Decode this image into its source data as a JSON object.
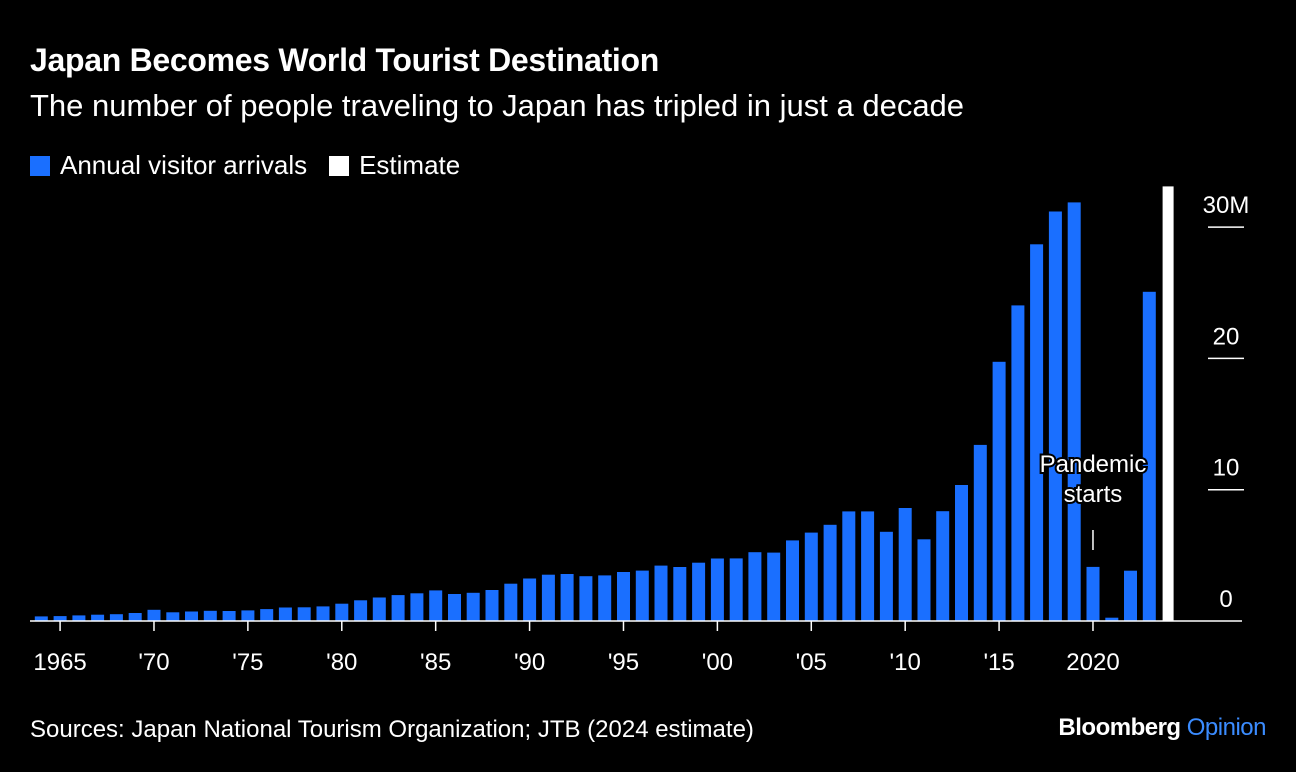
{
  "title": "Japan Becomes World Tourist Destination",
  "subtitle": "The number of people traveling to Japan has tripled in just a decade",
  "legend": [
    {
      "label": "Annual visitor arrivals",
      "color": "#1a6fff"
    },
    {
      "label": "Estimate",
      "color": "#ffffff"
    }
  ],
  "source": "Sources: Japan National Tourism Organization; JTB (2024 estimate)",
  "brand": {
    "main": "Bloomberg",
    "accent": "Opinion"
  },
  "chart_data": {
    "type": "bar",
    "x": [
      1964,
      1965,
      1966,
      1967,
      1968,
      1969,
      1970,
      1971,
      1972,
      1973,
      1974,
      1975,
      1976,
      1977,
      1978,
      1979,
      1980,
      1981,
      1982,
      1983,
      1984,
      1985,
      1986,
      1987,
      1988,
      1989,
      1990,
      1991,
      1992,
      1993,
      1994,
      1995,
      1996,
      1997,
      1998,
      1999,
      2000,
      2001,
      2002,
      2003,
      2004,
      2005,
      2006,
      2007,
      2008,
      2009,
      2010,
      2011,
      2012,
      2013,
      2014,
      2015,
      2016,
      2017,
      2018,
      2019,
      2020,
      2021,
      2022,
      2023,
      2024
    ],
    "series": [
      {
        "name": "Annual visitor arrivals",
        "color": "#1a6fff",
        "values": [
          0.35,
          0.37,
          0.43,
          0.48,
          0.52,
          0.61,
          0.85,
          0.66,
          0.72,
          0.78,
          0.76,
          0.81,
          0.91,
          1.03,
          1.04,
          1.11,
          1.32,
          1.58,
          1.79,
          1.97,
          2.11,
          2.33,
          2.06,
          2.15,
          2.36,
          2.84,
          3.24,
          3.53,
          3.58,
          3.41,
          3.47,
          3.73,
          3.84,
          4.22,
          4.11,
          4.44,
          4.76,
          4.77,
          5.24,
          5.21,
          6.14,
          6.73,
          7.33,
          8.35,
          8.35,
          6.79,
          8.61,
          6.22,
          8.36,
          10.36,
          13.41,
          19.74,
          24.04,
          28.69,
          31.19,
          31.88,
          4.12,
          0.25,
          3.83,
          25.07,
          null
        ]
      },
      {
        "name": "Estimate",
        "color": "#ffffff",
        "values": [
          null,
          null,
          null,
          null,
          null,
          null,
          null,
          null,
          null,
          null,
          null,
          null,
          null,
          null,
          null,
          null,
          null,
          null,
          null,
          null,
          null,
          null,
          null,
          null,
          null,
          null,
          null,
          null,
          null,
          null,
          null,
          null,
          null,
          null,
          null,
          null,
          null,
          null,
          null,
          null,
          null,
          null,
          null,
          null,
          null,
          null,
          null,
          null,
          null,
          null,
          null,
          null,
          null,
          null,
          null,
          null,
          null,
          null,
          null,
          null,
          33.1
        ]
      }
    ],
    "x_tick_years": [
      1965,
      1970,
      1975,
      1980,
      1985,
      1990,
      1995,
      2000,
      2005,
      2010,
      2015,
      2020
    ],
    "x_tick_labels": [
      "1965",
      "'70",
      "'75",
      "'80",
      "'85",
      "'90",
      "'95",
      "'00",
      "'05",
      "'10",
      "'15",
      "2020"
    ],
    "y_ticks": [
      0,
      10,
      20,
      30
    ],
    "y_tick_labels": [
      "0",
      "10",
      "20",
      "30M"
    ],
    "ylim": [
      0,
      33
    ],
    "annotation": {
      "year": 2020,
      "lines": [
        "Pandemic",
        "starts"
      ]
    }
  }
}
